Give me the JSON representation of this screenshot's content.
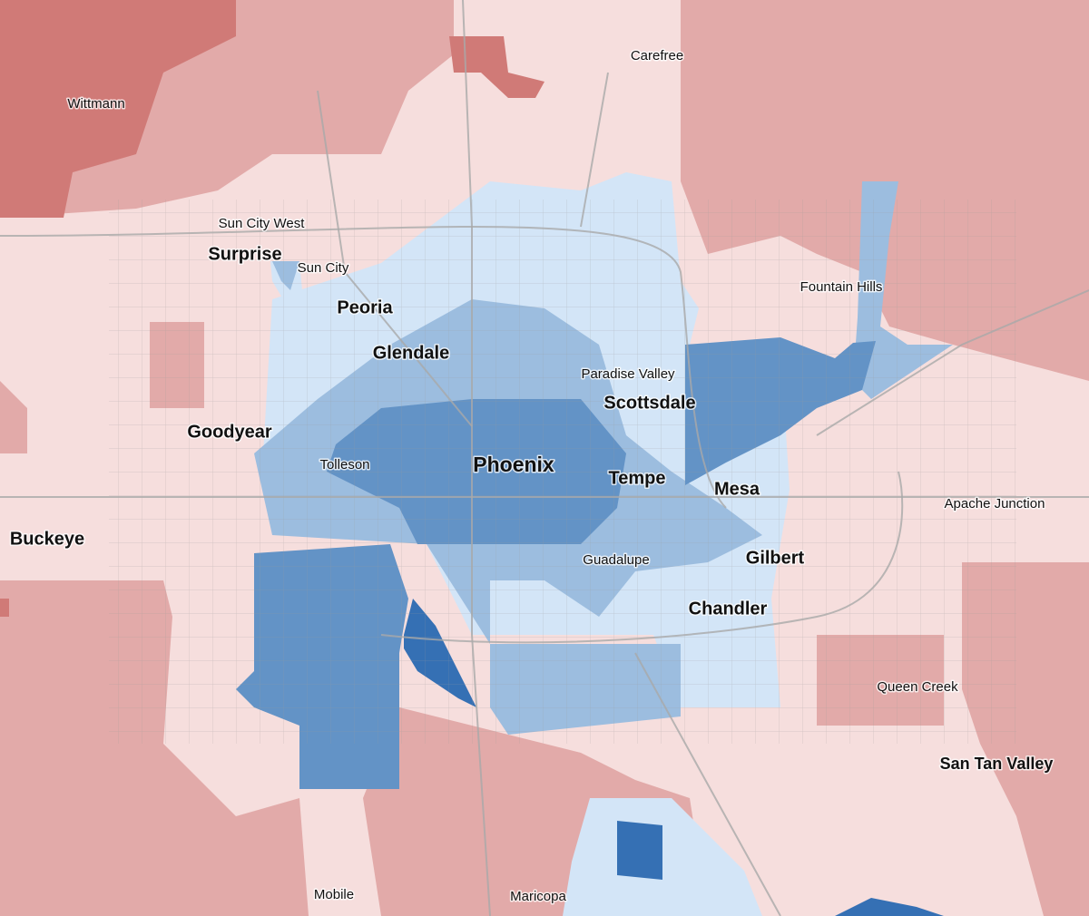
{
  "places": [
    "Carefree",
    "Wittmann",
    "Sun City West",
    "Surprise",
    "Sun City",
    "Peoria",
    "Fountain Hills",
    "Glendale",
    "Paradise Valley",
    "Scottsdale",
    "Goodyear",
    "Tolleson",
    "Phoenix",
    "Tempe",
    "Mesa",
    "Apache Junction",
    "Buckeye",
    "Guadalupe",
    "Gilbert",
    "Chandler",
    "Queen Creek",
    "San Tan Valley",
    "Mobile",
    "Maricopa"
  ]
}
